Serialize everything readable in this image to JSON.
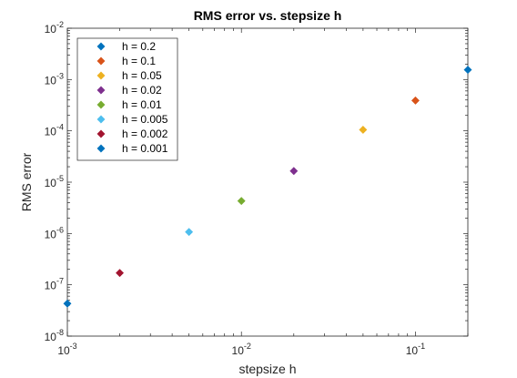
{
  "chart_data": {
    "type": "scatter",
    "title": "RMS error vs. stepsize h",
    "xlabel": "stepsize h",
    "ylabel": "RMS error",
    "xscale": "log",
    "yscale": "log",
    "xlim": [
      0.001,
      0.2
    ],
    "ylim": [
      1e-08,
      0.01
    ],
    "xticks": [
      {
        "base": "10",
        "exp": "-3",
        "value": 0.001
      },
      {
        "base": "10",
        "exp": "-2",
        "value": 0.01
      },
      {
        "base": "10",
        "exp": "-1",
        "value": 0.1
      }
    ],
    "yticks": [
      {
        "base": "10",
        "exp": "-8",
        "value": 1e-08
      },
      {
        "base": "10",
        "exp": "-7",
        "value": 1e-07
      },
      {
        "base": "10",
        "exp": "-6",
        "value": 1e-06
      },
      {
        "base": "10",
        "exp": "-5",
        "value": 1e-05
      },
      {
        "base": "10",
        "exp": "-4",
        "value": 0.0001
      },
      {
        "base": "10",
        "exp": "-3",
        "value": 0.001
      },
      {
        "base": "10",
        "exp": "-2",
        "value": 0.01
      }
    ],
    "grid": false,
    "legend": "top-left",
    "series": [
      {
        "name": "h = 0.2",
        "color": "#0072BD",
        "x": 0.2,
        "y": 0.00155
      },
      {
        "name": "h = 0.1",
        "color": "#D95319",
        "x": 0.1,
        "y": 0.00039
      },
      {
        "name": "h = 0.05",
        "color": "#EDB120",
        "x": 0.05,
        "y": 0.000105
      },
      {
        "name": "h = 0.02",
        "color": "#7E2F8E",
        "x": 0.02,
        "y": 1.65e-05
      },
      {
        "name": "h = 0.01",
        "color": "#77AC30",
        "x": 0.01,
        "y": 4.3e-06
      },
      {
        "name": "h = 0.005",
        "color": "#4DBEEE",
        "x": 0.005,
        "y": 1.07e-06
      },
      {
        "name": "h = 0.002",
        "color": "#A2142F",
        "x": 0.002,
        "y": 1.7e-07
      },
      {
        "name": "h = 0.001",
        "color": "#0072BD",
        "x": 0.001,
        "y": 4.3e-08
      }
    ]
  }
}
